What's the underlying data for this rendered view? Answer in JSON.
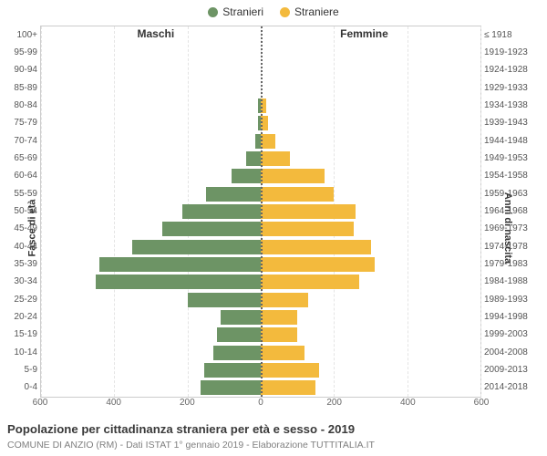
{
  "chart": {
    "type": "population-pyramid",
    "background_color": "#ffffff",
    "axis_color": "#cccccc",
    "grid_color": "#e4e4e4",
    "centerline_color": "#666666",
    "legend": {
      "items": [
        {
          "label": "Stranieri",
          "color": "#6d9465"
        },
        {
          "label": "Straniere",
          "color": "#f3ba3d"
        }
      ]
    },
    "columns": {
      "left": "Maschi",
      "right": "Femmine"
    },
    "y_left_title": "Fasce di età",
    "y_right_title": "Anni di nascita",
    "x_axis": {
      "max": 600,
      "tick_step": 200,
      "ticks_left": [
        600,
        400,
        200,
        0
      ],
      "ticks_right": [
        0,
        200,
        400,
        600
      ]
    },
    "rows": [
      {
        "age": "0-4",
        "birth": "2014-2018",
        "male": 165,
        "female": 150
      },
      {
        "age": "5-9",
        "birth": "2009-2013",
        "male": 155,
        "female": 160
      },
      {
        "age": "10-14",
        "birth": "2004-2008",
        "male": 130,
        "female": 120
      },
      {
        "age": "15-19",
        "birth": "1999-2003",
        "male": 120,
        "female": 100
      },
      {
        "age": "20-24",
        "birth": "1994-1998",
        "male": 110,
        "female": 100
      },
      {
        "age": "25-29",
        "birth": "1989-1993",
        "male": 200,
        "female": 130
      },
      {
        "age": "30-34",
        "birth": "1984-1988",
        "male": 450,
        "female": 270
      },
      {
        "age": "35-39",
        "birth": "1979-1983",
        "male": 440,
        "female": 310
      },
      {
        "age": "40-44",
        "birth": "1974-1978",
        "male": 350,
        "female": 300
      },
      {
        "age": "45-49",
        "birth": "1969-1973",
        "male": 270,
        "female": 255
      },
      {
        "age": "50-54",
        "birth": "1964-1968",
        "male": 215,
        "female": 260
      },
      {
        "age": "55-59",
        "birth": "1959-1963",
        "male": 150,
        "female": 200
      },
      {
        "age": "60-64",
        "birth": "1954-1958",
        "male": 80,
        "female": 175
      },
      {
        "age": "65-69",
        "birth": "1949-1953",
        "male": 40,
        "female": 80
      },
      {
        "age": "70-74",
        "birth": "1944-1948",
        "male": 15,
        "female": 40
      },
      {
        "age": "75-79",
        "birth": "1939-1943",
        "male": 8,
        "female": 20
      },
      {
        "age": "80-84",
        "birth": "1934-1938",
        "male": 7,
        "female": 15
      },
      {
        "age": "85-89",
        "birth": "1929-1933",
        "male": 0,
        "female": 0
      },
      {
        "age": "90-94",
        "birth": "1924-1928",
        "male": 0,
        "female": 0
      },
      {
        "age": "95-99",
        "birth": "1919-1923",
        "male": 0,
        "female": 0
      },
      {
        "age": "100+",
        "birth": "≤ 1918",
        "male": 0,
        "female": 0
      }
    ],
    "title": "Popolazione per cittadinanza straniera per età e sesso - 2019",
    "subtitle": "COMUNE DI ANZIO (RM) - Dati ISTAT 1° gennaio 2019 - Elaborazione TUTTITALIA.IT",
    "fontsize": {
      "title": 13.2,
      "subtitle": 10.5,
      "tick": 10,
      "col_header": 12,
      "legend": 12
    }
  }
}
